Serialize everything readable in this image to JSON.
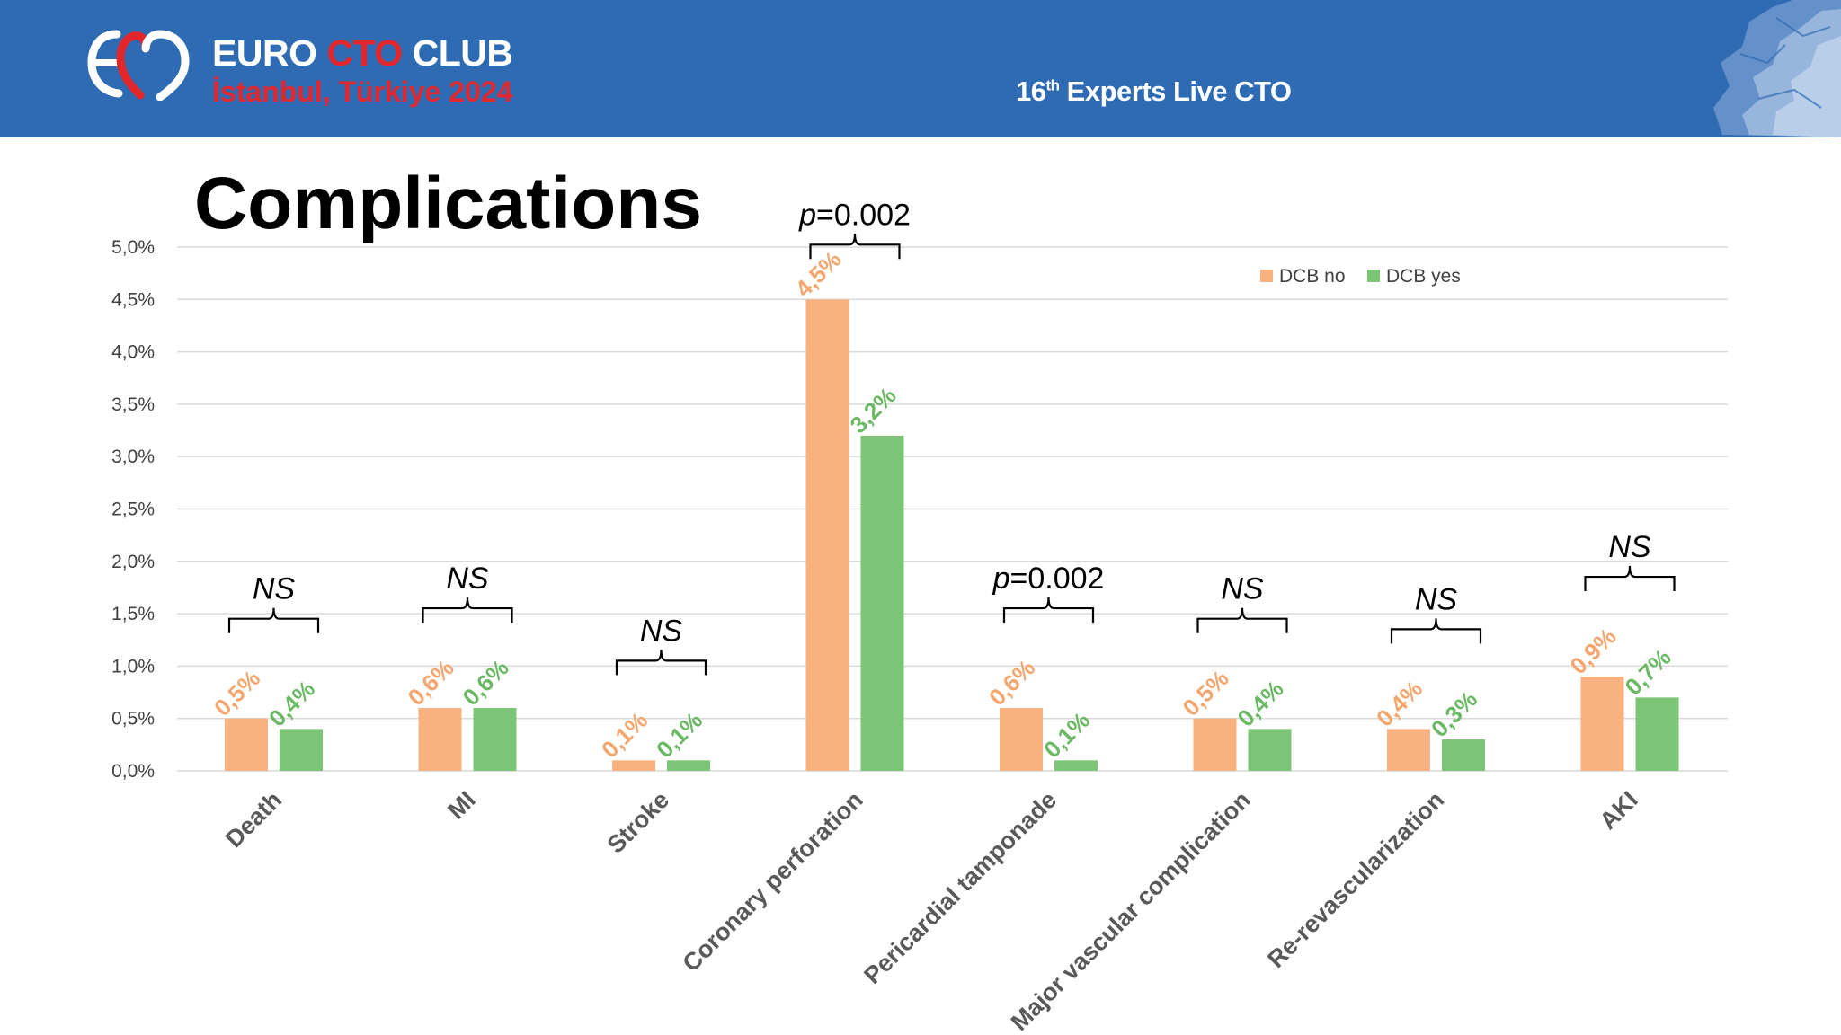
{
  "header": {
    "brand_prefix": "EURO",
    "brand_accent": "CTO",
    "brand_suffix": "CLUB",
    "location": "İstanbul, Türkiye 2024",
    "meeting_number": "16",
    "meeting_ordinal": "th",
    "meeting_name": "Experts Live CTO",
    "logo_icon": "heart-logo-icon",
    "map_icon": "europe-map-icon"
  },
  "slide": {
    "title": "Complications"
  },
  "colors": {
    "banner": "#2f6bb3",
    "dcb_no": "#f9b27f",
    "dcb_no_label": "#f4a66e",
    "dcb_yes": "#7cc576",
    "dcb_yes_label": "#6bb865",
    "grid": "#d9d9d9",
    "brand_red": "#e3262b"
  },
  "chart_data": {
    "type": "bar",
    "categories": [
      "Death",
      "MI",
      "Stroke",
      "Coronary perforation",
      "Pericardial tamponade",
      "Major vascular complication",
      "Re-revascularization",
      "AKI"
    ],
    "series": [
      {
        "name": "DCB no",
        "values": [
          0.5,
          0.6,
          0.1,
          4.5,
          0.6,
          0.5,
          0.4,
          0.9
        ],
        "labels": [
          "0,5%",
          "0,6%",
          "0,1%",
          "4,5%",
          "0,6%",
          "0,5%",
          "0,4%",
          "0,9%"
        ]
      },
      {
        "name": "DCB yes",
        "values": [
          0.4,
          0.6,
          0.1,
          3.2,
          0.1,
          0.4,
          0.3,
          0.7
        ],
        "labels": [
          "0,4%",
          "0,6%",
          "0,1%",
          "3,2%",
          "0,1%",
          "0,4%",
          "0,3%",
          "0,7%"
        ]
      }
    ],
    "significance": [
      "NS",
      "NS",
      "NS",
      "p=0.002",
      "p=0.002",
      "NS",
      "NS",
      "NS"
    ],
    "ylim": [
      0,
      5
    ],
    "yticks": [
      "0,0%",
      "0,5%",
      "1,0%",
      "1,5%",
      "2,0%",
      "2,5%",
      "3,0%",
      "3,5%",
      "4,0%",
      "4,5%",
      "5,0%"
    ],
    "ytick_values": [
      0,
      0.5,
      1,
      1.5,
      2,
      2.5,
      3,
      3.5,
      4,
      4.5,
      5
    ],
    "legend_position": "top-right",
    "grid": true
  }
}
